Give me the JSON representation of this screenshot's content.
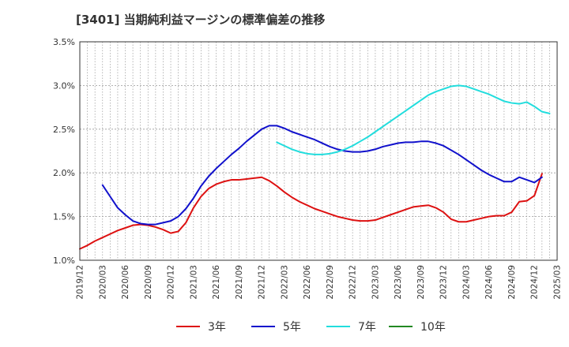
{
  "chart_data": {
    "type": "line",
    "title": "[3401]  当期純利益マージンの標準偏差の推移",
    "xlabel": "",
    "ylabel": "",
    "y_tick_labels": [
      "1.0%",
      "1.5%",
      "2.0%",
      "2.5%",
      "3.0%",
      "3.5%"
    ],
    "ylim": [
      1.0,
      3.5
    ],
    "x_tick_labels": [
      "2019/12",
      "2020/03",
      "2020/06",
      "2020/09",
      "2020/12",
      "2021/03",
      "2021/06",
      "2021/09",
      "2021/12",
      "2022/03",
      "2022/06",
      "2022/09",
      "2022/12",
      "2023/03",
      "2023/06",
      "2023/09",
      "2023/12",
      "2024/03",
      "2024/06",
      "2024/09",
      "2024/12",
      "2025/03"
    ],
    "x_start": "2019/12",
    "grid": true,
    "legend_position": "bottom",
    "series": [
      {
        "name": "3年",
        "color": "#dd1111",
        "points": [
          [
            "2019/12",
            1.13
          ],
          [
            "2020/01",
            1.17
          ],
          [
            "2020/02",
            1.22
          ],
          [
            "2020/03",
            1.26
          ],
          [
            "2020/04",
            1.3
          ],
          [
            "2020/05",
            1.34
          ],
          [
            "2020/06",
            1.37
          ],
          [
            "2020/07",
            1.4
          ],
          [
            "2020/08",
            1.41
          ],
          [
            "2020/09",
            1.4
          ],
          [
            "2020/10",
            1.38
          ],
          [
            "2020/11",
            1.35
          ],
          [
            "2020/12",
            1.31
          ],
          [
            "2021/01",
            1.33
          ],
          [
            "2021/02",
            1.43
          ],
          [
            "2021/03",
            1.6
          ],
          [
            "2021/04",
            1.73
          ],
          [
            "2021/05",
            1.82
          ],
          [
            "2021/06",
            1.87
          ],
          [
            "2021/07",
            1.9
          ],
          [
            "2021/08",
            1.92
          ],
          [
            "2021/09",
            1.92
          ],
          [
            "2021/10",
            1.93
          ],
          [
            "2021/11",
            1.94
          ],
          [
            "2021/12",
            1.95
          ],
          [
            "2022/01",
            1.91
          ],
          [
            "2022/02",
            1.85
          ],
          [
            "2022/03",
            1.78
          ],
          [
            "2022/04",
            1.72
          ],
          [
            "2022/05",
            1.67
          ],
          [
            "2022/06",
            1.63
          ],
          [
            "2022/07",
            1.59
          ],
          [
            "2022/08",
            1.56
          ],
          [
            "2022/09",
            1.53
          ],
          [
            "2022/10",
            1.5
          ],
          [
            "2022/11",
            1.48
          ],
          [
            "2022/12",
            1.46
          ],
          [
            "2023/01",
            1.45
          ],
          [
            "2023/02",
            1.45
          ],
          [
            "2023/03",
            1.46
          ],
          [
            "2023/04",
            1.49
          ],
          [
            "2023/05",
            1.52
          ],
          [
            "2023/06",
            1.55
          ],
          [
            "2023/07",
            1.58
          ],
          [
            "2023/08",
            1.61
          ],
          [
            "2023/09",
            1.62
          ],
          [
            "2023/10",
            1.63
          ],
          [
            "2023/11",
            1.6
          ],
          [
            "2023/12",
            1.55
          ],
          [
            "2024/01",
            1.47
          ],
          [
            "2024/02",
            1.44
          ],
          [
            "2024/03",
            1.44
          ],
          [
            "2024/04",
            1.46
          ],
          [
            "2024/05",
            1.48
          ],
          [
            "2024/06",
            1.5
          ],
          [
            "2024/07",
            1.51
          ],
          [
            "2024/08",
            1.51
          ],
          [
            "2024/09",
            1.55
          ],
          [
            "2024/10",
            1.67
          ],
          [
            "2024/11",
            1.68
          ],
          [
            "2024/12",
            1.74
          ],
          [
            "2025/01",
            1.99
          ]
        ]
      },
      {
        "name": "5年",
        "color": "#1111cc",
        "points": [
          [
            "2020/03",
            1.86
          ],
          [
            "2020/04",
            1.73
          ],
          [
            "2020/05",
            1.6
          ],
          [
            "2020/06",
            1.52
          ],
          [
            "2020/07",
            1.45
          ],
          [
            "2020/08",
            1.42
          ],
          [
            "2020/09",
            1.41
          ],
          [
            "2020/10",
            1.41
          ],
          [
            "2020/11",
            1.43
          ],
          [
            "2020/12",
            1.45
          ],
          [
            "2021/01",
            1.5
          ],
          [
            "2021/02",
            1.59
          ],
          [
            "2021/03",
            1.71
          ],
          [
            "2021/04",
            1.85
          ],
          [
            "2021/05",
            1.96
          ],
          [
            "2021/06",
            2.05
          ],
          [
            "2021/07",
            2.13
          ],
          [
            "2021/08",
            2.21
          ],
          [
            "2021/09",
            2.28
          ],
          [
            "2021/10",
            2.36
          ],
          [
            "2021/11",
            2.43
          ],
          [
            "2021/12",
            2.5
          ],
          [
            "2022/01",
            2.54
          ],
          [
            "2022/02",
            2.54
          ],
          [
            "2022/03",
            2.51
          ],
          [
            "2022/04",
            2.47
          ],
          [
            "2022/05",
            2.44
          ],
          [
            "2022/06",
            2.41
          ],
          [
            "2022/07",
            2.38
          ],
          [
            "2022/08",
            2.34
          ],
          [
            "2022/09",
            2.3
          ],
          [
            "2022/10",
            2.27
          ],
          [
            "2022/11",
            2.25
          ],
          [
            "2022/12",
            2.24
          ],
          [
            "2023/01",
            2.24
          ],
          [
            "2023/02",
            2.25
          ],
          [
            "2023/03",
            2.27
          ],
          [
            "2023/04",
            2.3
          ],
          [
            "2023/05",
            2.32
          ],
          [
            "2023/06",
            2.34
          ],
          [
            "2023/07",
            2.35
          ],
          [
            "2023/08",
            2.35
          ],
          [
            "2023/09",
            2.36
          ],
          [
            "2023/10",
            2.36
          ],
          [
            "2023/11",
            2.34
          ],
          [
            "2023/12",
            2.31
          ],
          [
            "2024/01",
            2.26
          ],
          [
            "2024/02",
            2.21
          ],
          [
            "2024/03",
            2.15
          ],
          [
            "2024/04",
            2.09
          ],
          [
            "2024/05",
            2.03
          ],
          [
            "2024/06",
            1.98
          ],
          [
            "2024/07",
            1.94
          ],
          [
            "2024/08",
            1.9
          ],
          [
            "2024/09",
            1.9
          ],
          [
            "2024/10",
            1.95
          ],
          [
            "2024/11",
            1.92
          ],
          [
            "2024/12",
            1.89
          ],
          [
            "2025/01",
            1.95
          ]
        ]
      },
      {
        "name": "7年",
        "color": "#22dddd",
        "points": [
          [
            "2022/02",
            2.35
          ],
          [
            "2022/03",
            2.31
          ],
          [
            "2022/04",
            2.27
          ],
          [
            "2022/05",
            2.24
          ],
          [
            "2022/06",
            2.22
          ],
          [
            "2022/07",
            2.21
          ],
          [
            "2022/08",
            2.21
          ],
          [
            "2022/09",
            2.22
          ],
          [
            "2022/10",
            2.24
          ],
          [
            "2022/11",
            2.27
          ],
          [
            "2022/12",
            2.31
          ],
          [
            "2023/01",
            2.36
          ],
          [
            "2023/02",
            2.41
          ],
          [
            "2023/03",
            2.47
          ],
          [
            "2023/04",
            2.53
          ],
          [
            "2023/05",
            2.59
          ],
          [
            "2023/06",
            2.65
          ],
          [
            "2023/07",
            2.71
          ],
          [
            "2023/08",
            2.77
          ],
          [
            "2023/09",
            2.83
          ],
          [
            "2023/10",
            2.89
          ],
          [
            "2023/11",
            2.93
          ],
          [
            "2023/12",
            2.96
          ],
          [
            "2024/01",
            2.99
          ],
          [
            "2024/02",
            3.0
          ],
          [
            "2024/03",
            2.99
          ],
          [
            "2024/04",
            2.96
          ],
          [
            "2024/05",
            2.93
          ],
          [
            "2024/06",
            2.9
          ],
          [
            "2024/07",
            2.86
          ],
          [
            "2024/08",
            2.82
          ],
          [
            "2024/09",
            2.8
          ],
          [
            "2024/10",
            2.79
          ],
          [
            "2024/11",
            2.81
          ],
          [
            "2024/12",
            2.76
          ],
          [
            "2025/01",
            2.7
          ],
          [
            "2025/02",
            2.68
          ]
        ]
      },
      {
        "name": "10年",
        "color": "#228822",
        "points": []
      }
    ]
  },
  "colors": {
    "grid": "#999999",
    "axis": "#333333",
    "plot_bg": "#ffffff"
  }
}
